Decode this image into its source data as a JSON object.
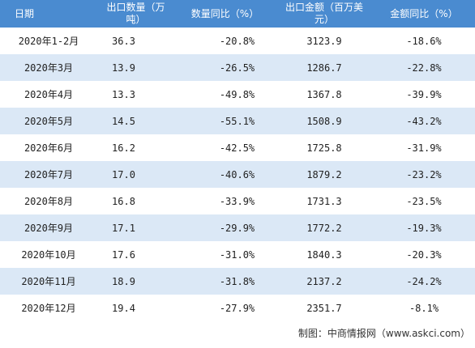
{
  "table": {
    "header": [
      "日期",
      "出口数量（万吨）",
      "数量同比（%）",
      "出口金额（百万美元）",
      "金额同比（%）"
    ],
    "rows": [
      [
        "2020年1-2月",
        "36.3",
        "-20.8%",
        "3123.9",
        "-18.6%"
      ],
      [
        "2020年3月",
        "13.9",
        "-26.5%",
        "1286.7",
        "-22.8%"
      ],
      [
        "2020年4月",
        "13.3",
        "-49.8%",
        "1367.8",
        "-39.9%"
      ],
      [
        "2020年5月",
        "14.5",
        "-55.1%",
        "1508.9",
        "-43.2%"
      ],
      [
        "2020年6月",
        "16.2",
        "-42.5%",
        "1725.8",
        "-31.9%"
      ],
      [
        "2020年7月",
        "17.0",
        "-40.6%",
        "1879.2",
        "-23.2%"
      ],
      [
        "2020年8月",
        "16.8",
        "-33.9%",
        "1731.3",
        "-23.5%"
      ],
      [
        "2020年9月",
        "17.1",
        "-29.9%",
        "1772.2",
        "-19.3%"
      ],
      [
        "2020年10月",
        "17.6",
        "-31.0%",
        "1840.3",
        "-20.3%"
      ],
      [
        "2020年11月",
        "18.9",
        "-31.8%",
        "2137.2",
        "-24.2%"
      ],
      [
        "2020年12月",
        "19.4",
        "-27.9%",
        "2351.7",
        "-8.1%"
      ]
    ]
  },
  "footer": "制图：中商情报网（www.askci.com）"
}
